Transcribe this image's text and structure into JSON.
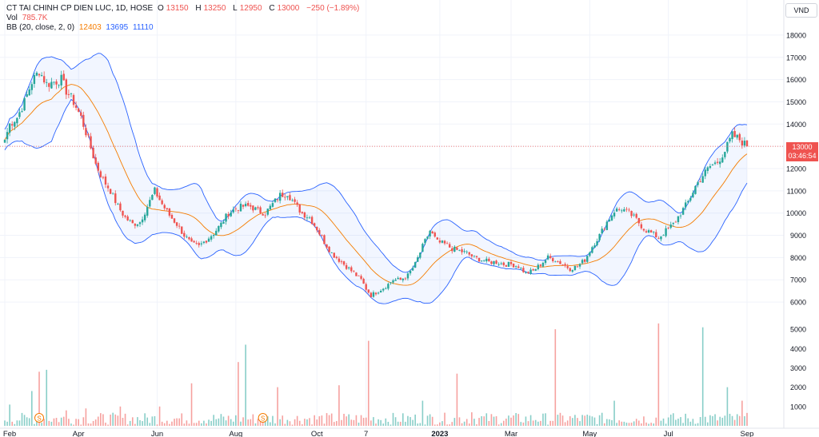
{
  "legend": {
    "symbol": "CT TAI CHINH CP DIEN LUC, 1D, HOSE",
    "o_label": "O",
    "o_value": "13150",
    "h_label": "H",
    "h_value": "13250",
    "l_label": "L",
    "l_value": "12950",
    "c_label": "C",
    "c_value": "13000",
    "change": "−250 (−1.89%)",
    "vol_label": "Vol",
    "vol_value": "785.7K",
    "bb_label": "BB (20, close, 2, 0)",
    "bb_basis": "12403",
    "bb_upper": "13695",
    "bb_lower": "11110"
  },
  "currency": "VND",
  "last_price": {
    "value": 13000,
    "label": "13000",
    "countdown": "03:46:54"
  },
  "colors": {
    "up": "#26a69a",
    "down": "#ef5350",
    "band": "#2962ff",
    "basis": "#f57c00",
    "axis_text": "#131722"
  },
  "dividend_markers": [
    "S",
    "S"
  ],
  "chart_data": {
    "type": "candlestick",
    "price_axis": {
      "ylim": [
        5500,
        18500
      ],
      "ticks": [
        6000,
        7000,
        8000,
        9000,
        10000,
        11000,
        12000,
        13000,
        14000,
        15000,
        16000,
        17000,
        18000
      ]
    },
    "volume_axis": {
      "ylim": [
        0,
        5500
      ],
      "ticks": [
        1000,
        2000,
        3000,
        4000,
        5000
      ]
    },
    "time_axis": {
      "start": "Feb",
      "end": "Sep",
      "labels": [
        "Feb",
        "Apr",
        "Jun",
        "Aug",
        "Oct",
        "7",
        "2023",
        "Mar",
        "May",
        "Jul",
        "Sep"
      ],
      "label_positions": [
        0,
        30,
        62,
        94,
        127,
        147,
        177,
        206,
        238,
        270,
        302
      ]
    },
    "close_anchors": [
      [
        0,
        13300
      ],
      [
        2,
        14000
      ],
      [
        5,
        14300
      ],
      [
        8,
        15000
      ],
      [
        11,
        15900
      ],
      [
        14,
        16400
      ],
      [
        17,
        15800
      ],
      [
        20,
        15900
      ],
      [
        23,
        16000
      ],
      [
        25,
        15500
      ],
      [
        28,
        15000
      ],
      [
        31,
        14300
      ],
      [
        34,
        13300
      ],
      [
        37,
        12200
      ],
      [
        40,
        11500
      ],
      [
        43,
        11000
      ],
      [
        46,
        10300
      ],
      [
        49,
        9800
      ],
      [
        52,
        9500
      ],
      [
        55,
        9600
      ],
      [
        58,
        10300
      ],
      [
        61,
        11000
      ],
      [
        64,
        10400
      ],
      [
        67,
        9900
      ],
      [
        70,
        9500
      ],
      [
        73,
        9000
      ],
      [
        76,
        8600
      ],
      [
        79,
        8500
      ],
      [
        82,
        8800
      ],
      [
        85,
        9100
      ],
      [
        88,
        9500
      ],
      [
        91,
        10000
      ],
      [
        94,
        10200
      ],
      [
        97,
        10300
      ],
      [
        100,
        10300
      ],
      [
        103,
        10100
      ],
      [
        106,
        10000
      ],
      [
        109,
        10400
      ],
      [
        112,
        10800
      ],
      [
        115,
        10900
      ],
      [
        118,
        10400
      ],
      [
        121,
        10000
      ],
      [
        124,
        9800
      ],
      [
        127,
        9300
      ],
      [
        130,
        8700
      ],
      [
        133,
        8200
      ],
      [
        136,
        7900
      ],
      [
        139,
        7600
      ],
      [
        142,
        7300
      ],
      [
        145,
        7000
      ],
      [
        147,
        6600
      ],
      [
        149,
        6300
      ],
      [
        152,
        6500
      ],
      [
        155,
        6700
      ],
      [
        158,
        7000
      ],
      [
        161,
        7000
      ],
      [
        164,
        7200
      ],
      [
        167,
        7700
      ],
      [
        170,
        8500
      ],
      [
        173,
        9200
      ],
      [
        176,
        8700
      ],
      [
        179,
        8600
      ],
      [
        182,
        8400
      ],
      [
        185,
        8300
      ],
      [
        188,
        8200
      ],
      [
        191,
        8000
      ],
      [
        194,
        7900
      ],
      [
        197,
        7800
      ],
      [
        200,
        7800
      ],
      [
        203,
        7700
      ],
      [
        206,
        7700
      ],
      [
        209,
        7600
      ],
      [
        212,
        7300
      ],
      [
        215,
        7400
      ],
      [
        218,
        7700
      ],
      [
        221,
        8000
      ],
      [
        224,
        7900
      ],
      [
        227,
        7700
      ],
      [
        230,
        7500
      ],
      [
        233,
        7600
      ],
      [
        236,
        7900
      ],
      [
        239,
        8500
      ],
      [
        242,
        9000
      ],
      [
        245,
        9600
      ],
      [
        248,
        10100
      ],
      [
        251,
        10200
      ],
      [
        254,
        10000
      ],
      [
        257,
        9700
      ],
      [
        260,
        9300
      ],
      [
        263,
        9100
      ],
      [
        266,
        8900
      ],
      [
        269,
        9200
      ],
      [
        272,
        9500
      ],
      [
        275,
        10000
      ],
      [
        278,
        10500
      ],
      [
        281,
        11200
      ],
      [
        284,
        11700
      ],
      [
        287,
        12100
      ],
      [
        290,
        12300
      ],
      [
        293,
        12800
      ],
      [
        296,
        13500
      ],
      [
        299,
        13300
      ],
      [
        302,
        13000
      ]
    ],
    "volume_spikes": [
      [
        2,
        1100
      ],
      [
        11,
        1800
      ],
      [
        14,
        2800
      ],
      [
        17,
        2900
      ],
      [
        25,
        800
      ],
      [
        33,
        900
      ],
      [
        47,
        1000
      ],
      [
        63,
        1000
      ],
      [
        76,
        2200
      ],
      [
        95,
        3300
      ],
      [
        98,
        4200
      ],
      [
        111,
        2000
      ],
      [
        136,
        2100
      ],
      [
        148,
        4400
      ],
      [
        170,
        1300
      ],
      [
        184,
        2700
      ],
      [
        190,
        700
      ],
      [
        224,
        5000
      ],
      [
        248,
        1300
      ],
      [
        266,
        5300
      ],
      [
        284,
        5100
      ],
      [
        294,
        2000
      ],
      [
        300,
        1300
      ]
    ]
  }
}
